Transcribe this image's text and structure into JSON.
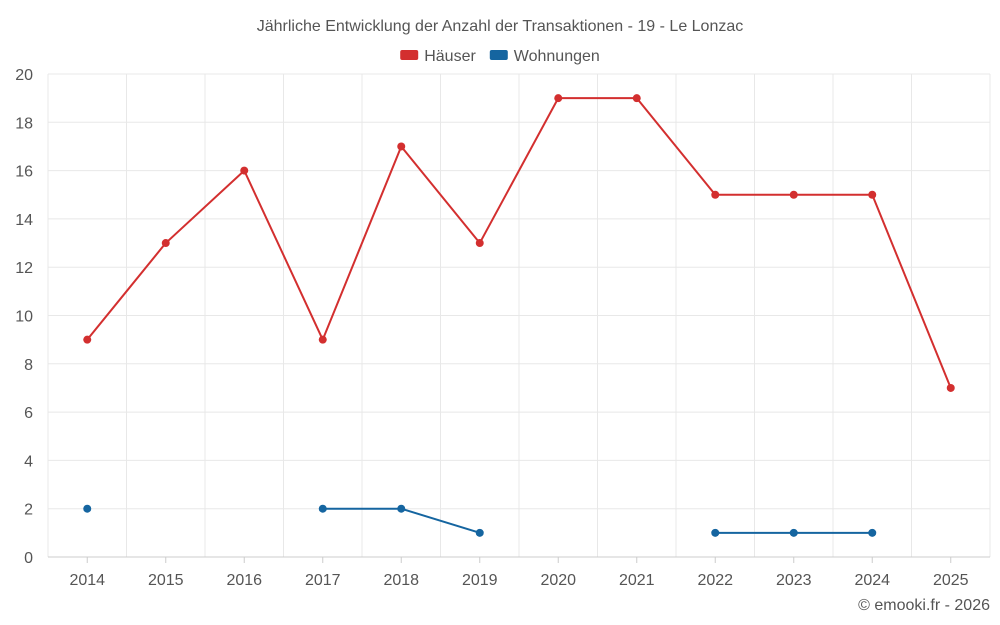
{
  "chart_data": {
    "type": "line",
    "title": "Jährliche Entwicklung der Anzahl der Transaktionen - 19 - Le Lonzac",
    "categories": [
      "2014",
      "2015",
      "2016",
      "2017",
      "2018",
      "2019",
      "2020",
      "2021",
      "2022",
      "2023",
      "2024",
      "2025"
    ],
    "ylim": [
      0,
      20
    ],
    "yticks": [
      0,
      2,
      4,
      6,
      8,
      10,
      12,
      14,
      16,
      18,
      20
    ],
    "grid": true,
    "legend_position": "top-center",
    "series": [
      {
        "name": "Häuser",
        "color": "#d32f2f",
        "values": [
          9,
          13,
          16,
          9,
          17,
          13,
          19,
          19,
          15,
          15,
          15,
          7
        ]
      },
      {
        "name": "Wohnungen",
        "color": "#1565a0",
        "values": [
          2,
          null,
          null,
          2,
          2,
          1,
          null,
          null,
          1,
          1,
          1,
          null
        ]
      }
    ],
    "credit": "© emooki.fr - 2026"
  }
}
